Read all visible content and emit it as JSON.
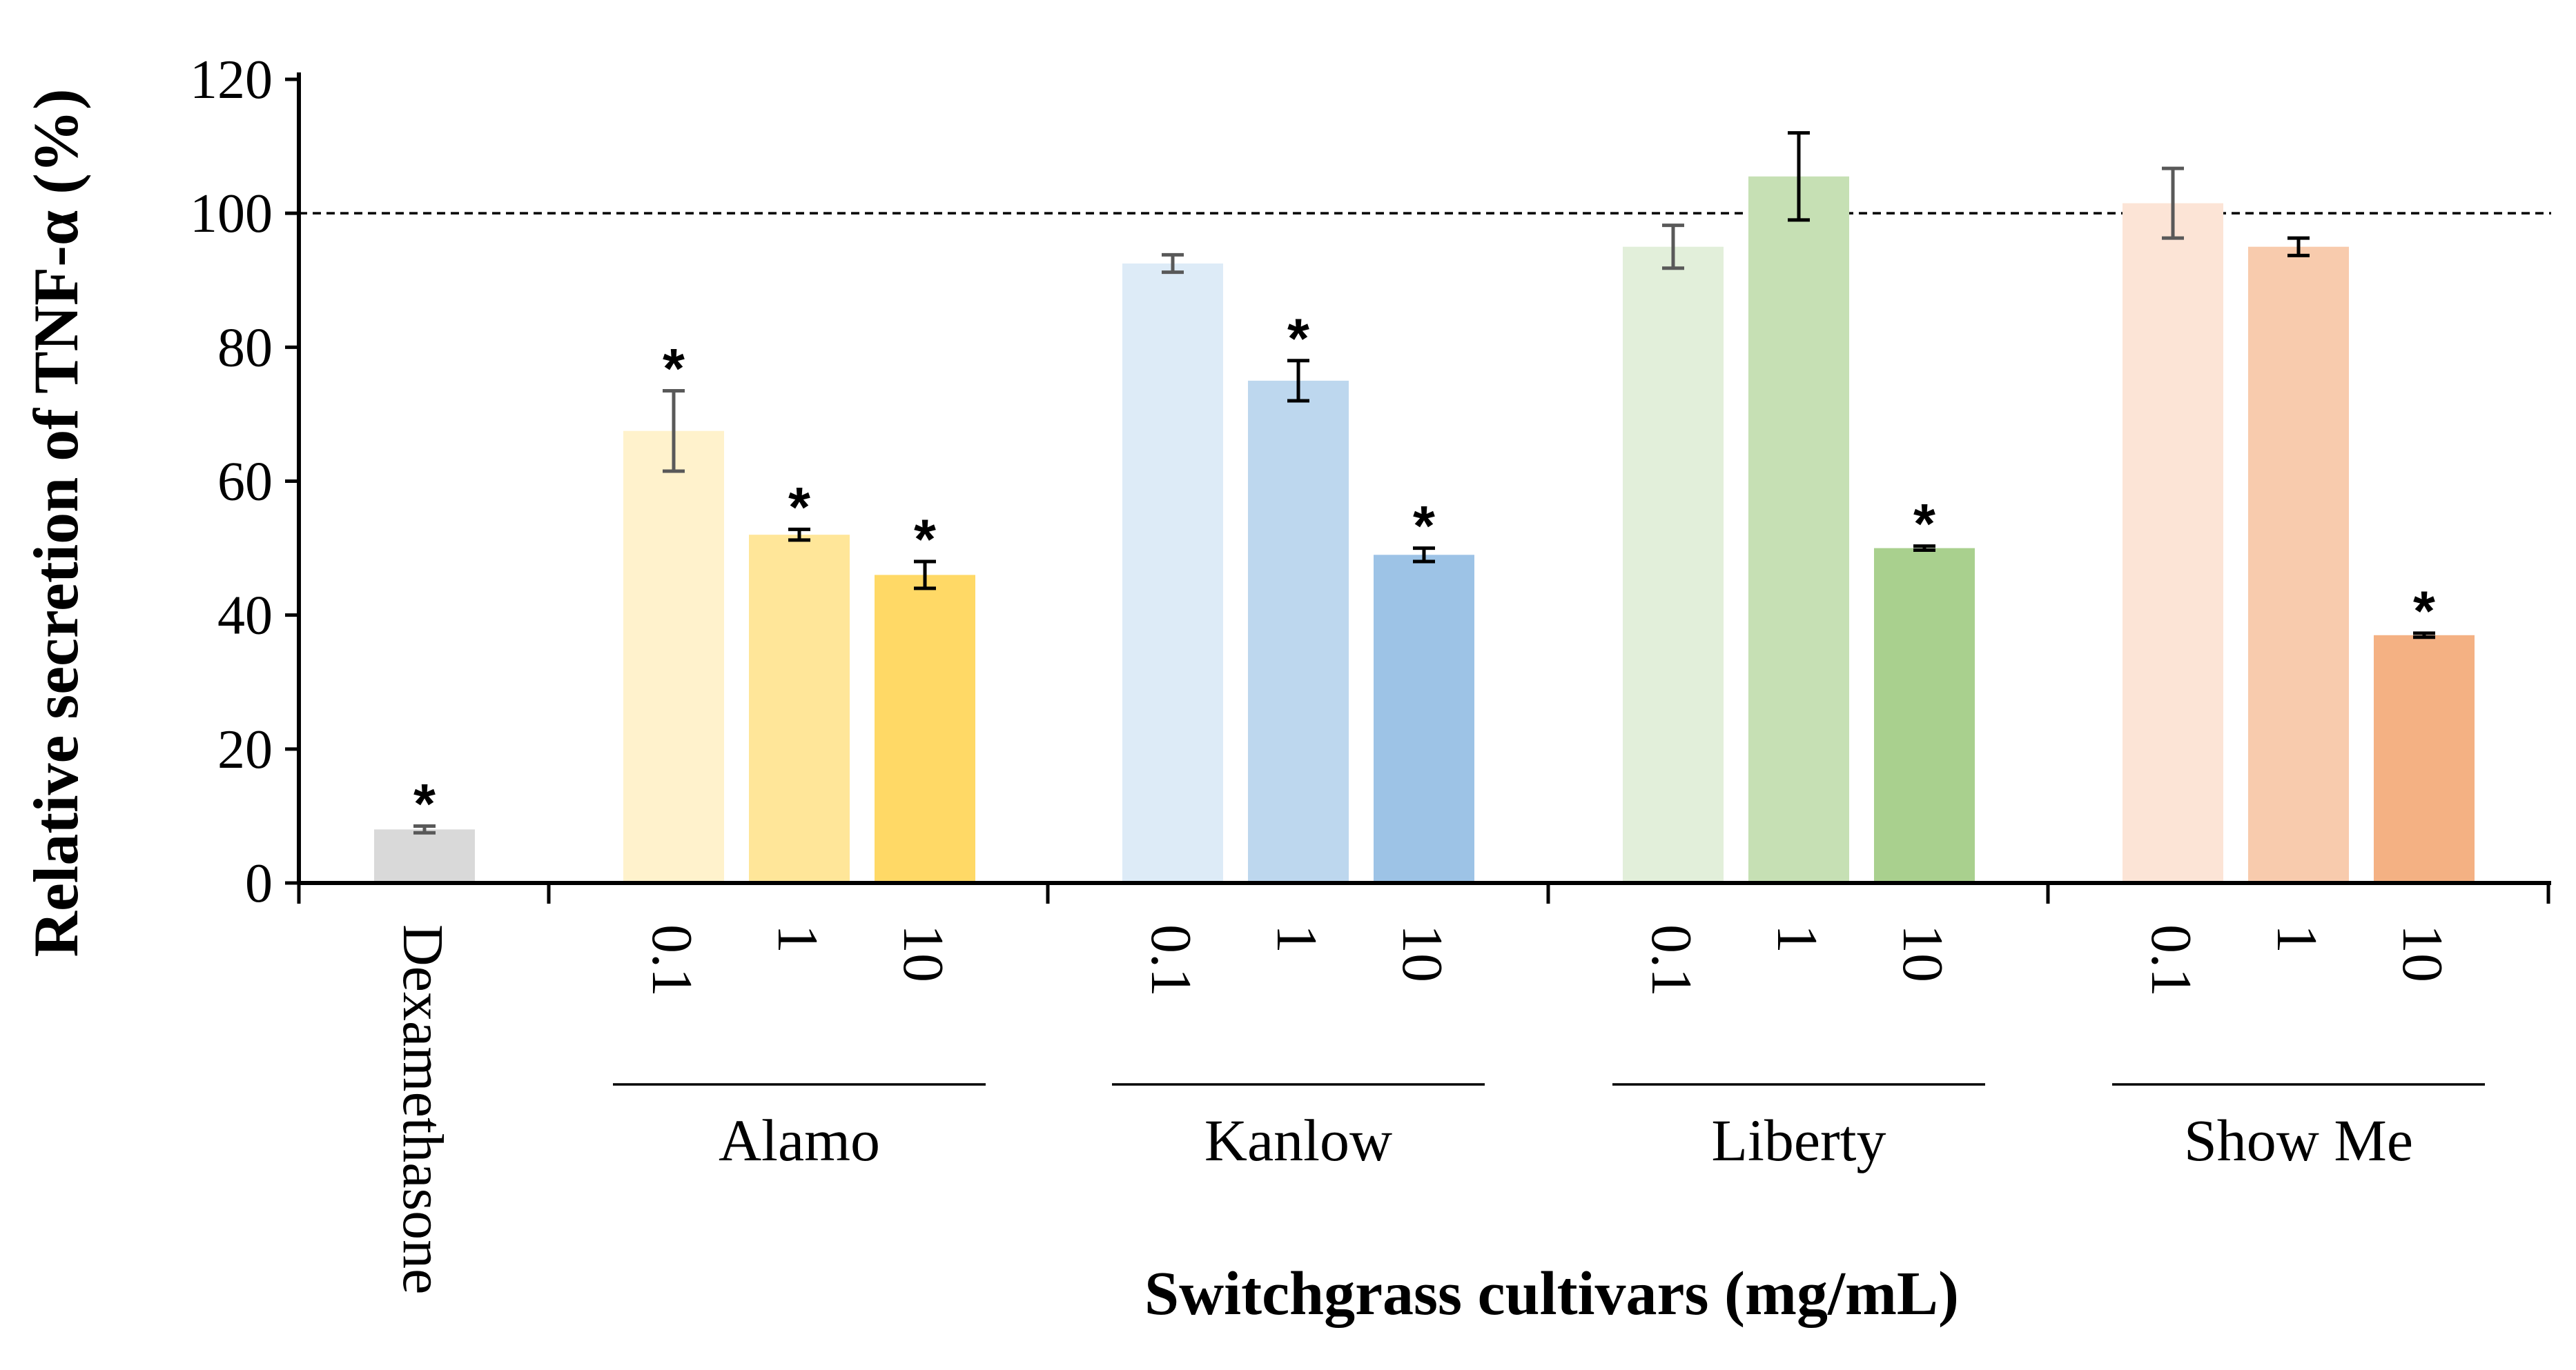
{
  "chart_data": {
    "type": "bar",
    "ylabel": "Relative secretion of TNF-α (%)",
    "xlabel": "Switchgrass cultivars (mg/mL)",
    "ylim": [
      0,
      120
    ],
    "yticks": [
      0,
      20,
      40,
      60,
      80,
      100,
      120
    ],
    "reference_line": 100,
    "significance_mark": "*",
    "control": {
      "label": "Dexamethasone",
      "value": 8,
      "error": 0.5,
      "significant": true,
      "color": "#d9d9d9",
      "err_color": "#595959"
    },
    "groups": [
      {
        "name": "Alamo",
        "bars": [
          {
            "dose": "0.1",
            "value": 67.5,
            "error": 6,
            "significant": true,
            "color": "#fff2cc",
            "err_color": "#595959"
          },
          {
            "dose": "1",
            "value": 52,
            "error": 0.8,
            "significant": true,
            "color": "#ffe699",
            "err_color": "#000000"
          },
          {
            "dose": "10",
            "value": 46,
            "error": 2,
            "significant": true,
            "color": "#ffd966",
            "err_color": "#000000"
          }
        ]
      },
      {
        "name": "Kanlow",
        "bars": [
          {
            "dose": "0.1",
            "value": 92.5,
            "error": 1.3,
            "significant": false,
            "color": "#ddebf7",
            "err_color": "#595959"
          },
          {
            "dose": "1",
            "value": 75,
            "error": 3,
            "significant": true,
            "color": "#bdd7ee",
            "err_color": "#000000"
          },
          {
            "dose": "10",
            "value": 49,
            "error": 1,
            "significant": true,
            "color": "#9dc3e6",
            "err_color": "#000000"
          }
        ]
      },
      {
        "name": "Liberty",
        "bars": [
          {
            "dose": "0.1",
            "value": 95,
            "error": 3.2,
            "significant": false,
            "color": "#e2efda",
            "err_color": "#595959"
          },
          {
            "dose": "1",
            "value": 105.5,
            "error": 6.5,
            "significant": false,
            "color": "#c6e0b4",
            "err_color": "#000000"
          },
          {
            "dose": "10",
            "value": 50,
            "error": 0.3,
            "significant": true,
            "color": "#a9d08e",
            "err_color": "#000000"
          }
        ]
      },
      {
        "name": "Show Me",
        "bars": [
          {
            "dose": "0.1",
            "value": 101.5,
            "error": 5.2,
            "significant": false,
            "color": "#fce4d6",
            "err_color": "#595959"
          },
          {
            "dose": "1",
            "value": 95,
            "error": 1.3,
            "significant": false,
            "color": "#f8cbad",
            "err_color": "#000000"
          },
          {
            "dose": "10",
            "value": 37,
            "error": 0.3,
            "significant": true,
            "color": "#f4b183",
            "err_color": "#000000"
          }
        ]
      }
    ]
  }
}
